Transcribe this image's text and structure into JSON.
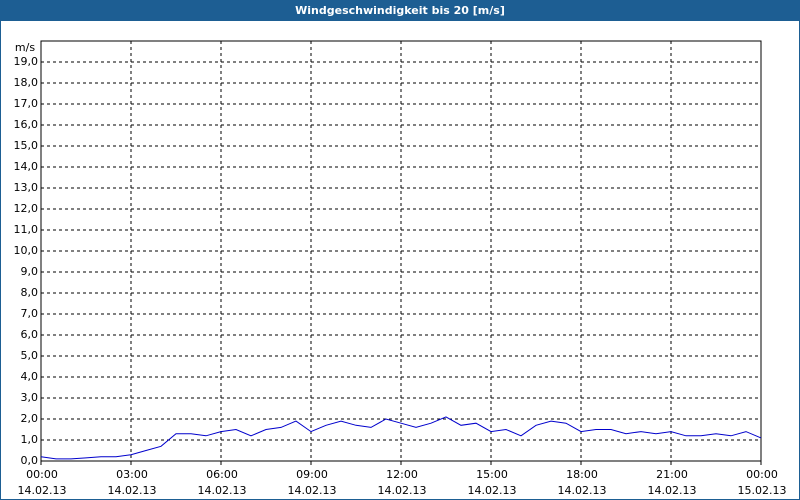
{
  "chart_data": {
    "type": "line",
    "title": "Windgeschwindigkeit bis 20 [m/s]",
    "y_label": "m/s",
    "xlim": [
      0,
      24
    ],
    "ylim": [
      0,
      20
    ],
    "xticks": [
      {
        "value": 0,
        "label": "00:00\n14.02.13"
      },
      {
        "value": 3,
        "label": "03:00\n14.02.13"
      },
      {
        "value": 6,
        "label": "06:00\n14.02.13"
      },
      {
        "value": 9,
        "label": "09:00\n14.02.13"
      },
      {
        "value": 12,
        "label": "12:00\n14.02.13"
      },
      {
        "value": 15,
        "label": "15:00\n14.02.13"
      },
      {
        "value": 18,
        "label": "18:00\n14.02.13"
      },
      {
        "value": 21,
        "label": "21:00\n14.02.13"
      },
      {
        "value": 24,
        "label": "00:00\n15.02.13"
      }
    ],
    "yticks": [
      {
        "value": 0,
        "label": "0,0"
      },
      {
        "value": 1,
        "label": "1,0"
      },
      {
        "value": 2,
        "label": "2,0"
      },
      {
        "value": 3,
        "label": "3,0"
      },
      {
        "value": 4,
        "label": "4,0"
      },
      {
        "value": 5,
        "label": "5,0"
      },
      {
        "value": 6,
        "label": "6,0"
      },
      {
        "value": 7,
        "label": "7,0"
      },
      {
        "value": 8,
        "label": "8,0"
      },
      {
        "value": 9,
        "label": "9,0"
      },
      {
        "value": 10,
        "label": "10,0"
      },
      {
        "value": 11,
        "label": "11,0"
      },
      {
        "value": 12,
        "label": "12,0"
      },
      {
        "value": 13,
        "label": "13,0"
      },
      {
        "value": 14,
        "label": "14,0"
      },
      {
        "value": 15,
        "label": "15,0"
      },
      {
        "value": 16,
        "label": "16,0"
      },
      {
        "value": 17,
        "label": "17,0"
      },
      {
        "value": 18,
        "label": "18,0"
      },
      {
        "value": 19,
        "label": "19,0"
      }
    ],
    "grid": true,
    "x": [
      0,
      0.5,
      1,
      1.5,
      2,
      2.5,
      3,
      3.5,
      4,
      4.5,
      5,
      5.5,
      6,
      6.5,
      7,
      7.5,
      8,
      8.5,
      9,
      9.5,
      10,
      10.5,
      11,
      11.5,
      12,
      12.5,
      13,
      13.5,
      14,
      14.5,
      15,
      15.5,
      16,
      16.5,
      17,
      17.5,
      18,
      18.5,
      19,
      19.5,
      20,
      20.5,
      21,
      21.5,
      22,
      22.5,
      23,
      23.5,
      24
    ],
    "series": [
      {
        "name": "Windgeschwindigkeit",
        "color": "#0000cc",
        "values": [
          0.2,
          0.1,
          0.1,
          0.15,
          0.2,
          0.2,
          0.3,
          0.5,
          0.7,
          1.3,
          1.3,
          1.2,
          1.4,
          1.5,
          1.2,
          1.5,
          1.6,
          1.9,
          1.4,
          1.7,
          1.9,
          1.7,
          1.6,
          2.0,
          1.8,
          1.6,
          1.8,
          2.1,
          1.7,
          1.8,
          1.4,
          1.5,
          1.2,
          1.7,
          1.9,
          1.8,
          1.4,
          1.5,
          1.5,
          1.3,
          1.4,
          1.3,
          1.4,
          1.2,
          1.2,
          1.3,
          1.2,
          1.4,
          1.1
        ]
      }
    ]
  }
}
